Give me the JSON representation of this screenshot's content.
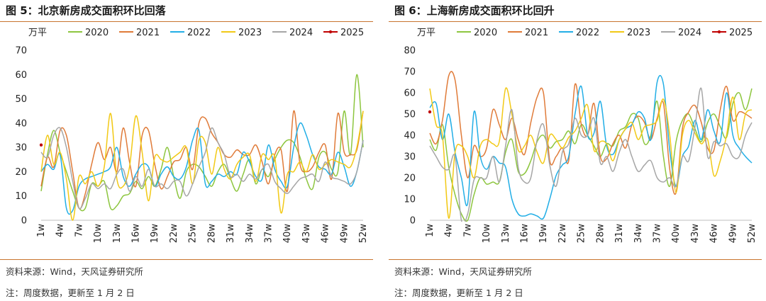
{
  "panels": [
    {
      "title": "图 5：北京新房成交面积环比回落",
      "source": "资料来源：Wind，天风证券研究所",
      "note": "注：周度数据，更新至 1 月 2 日"
    },
    {
      "title": "图 6：上海新房成交面积环比回升",
      "source": "资料来源：Wind，天风证券研究所",
      "note": "注：周度数据，更新至 1 月 2 日"
    }
  ],
  "chart_data": [
    {
      "type": "line",
      "ylabel": "万平",
      "ylim": [
        0,
        70
      ],
      "yticks": [
        0,
        10,
        20,
        30,
        40,
        50,
        60,
        70
      ],
      "xticks": [
        "1w",
        "4w",
        "7w",
        "10w",
        "13w",
        "16w",
        "19w",
        "22w",
        "25w",
        "28w",
        "31w",
        "34w",
        "37w",
        "40w",
        "43w",
        "46w",
        "49w",
        "52w"
      ],
      "grid": false,
      "legend": "top",
      "series": [
        {
          "name": "2020",
          "color": "#8dc63f",
          "values": [
            12,
            27,
            37,
            28,
            20,
            12,
            5,
            5,
            15,
            14,
            16,
            5,
            6,
            10,
            11,
            16,
            13,
            18,
            14,
            21,
            30,
            18,
            9,
            20,
            23,
            22,
            18,
            14,
            20,
            23,
            17,
            12,
            19,
            25,
            15,
            21,
            18,
            25,
            30,
            33,
            32,
            26,
            17,
            13,
            26,
            28,
            21,
            20,
            45,
            27,
            60,
            30
          ]
        },
        {
          "name": "2021",
          "color": "#e07b39",
          "values": [
            14,
            26,
            22,
            37,
            35,
            20,
            5,
            11,
            23,
            32,
            25,
            30,
            20,
            38,
            24,
            14,
            35,
            37,
            23,
            13,
            18,
            24,
            25,
            30,
            21,
            40,
            42,
            36,
            32,
            27,
            26,
            29,
            27,
            27,
            31,
            24,
            15,
            27,
            29,
            12,
            45,
            23,
            20,
            22,
            28,
            31,
            17,
            44,
            28,
            27,
            29,
            45
          ]
        },
        {
          "name": "2022",
          "color": "#22aee6",
          "values": [
            20,
            23,
            21,
            27,
            5,
            4,
            14,
            17,
            18,
            19,
            20,
            22,
            30,
            18,
            14,
            19,
            23,
            22,
            14,
            19,
            22,
            18,
            17,
            22,
            33,
            37,
            15,
            16,
            19,
            18,
            20,
            19,
            28,
            24,
            18,
            17,
            31,
            21,
            16,
            14,
            30,
            40,
            35,
            27,
            22,
            21,
            19,
            28,
            22,
            14,
            20,
            33
          ]
        },
        {
          "name": "2023",
          "color": "#f2c916",
          "values": [
            20,
            35,
            23,
            28,
            17,
            0,
            18,
            15,
            20,
            14,
            22,
            44,
            17,
            14,
            22,
            43,
            28,
            8,
            26,
            25,
            24,
            26,
            28,
            30,
            15,
            33,
            32,
            19,
            30,
            21,
            17,
            23,
            26,
            27,
            16,
            27,
            25,
            26,
            3,
            19,
            20,
            24,
            20,
            27,
            21,
            23,
            25,
            24,
            23,
            22,
            30,
            45
          ]
        },
        {
          "name": "2024",
          "color": "#a6a6a6",
          "values": [
            28,
            26,
            35,
            38,
            30,
            16,
            5,
            9,
            15,
            13,
            15,
            13,
            19,
            21,
            12,
            18,
            14,
            21,
            14,
            15,
            13,
            16,
            16,
            10,
            15,
            22,
            28,
            38,
            32,
            27,
            18,
            19,
            16,
            19,
            17,
            21,
            23,
            16,
            13,
            11,
            14,
            17,
            18,
            19,
            16,
            24,
            18,
            17,
            16,
            15,
            20,
            33
          ]
        },
        {
          "name": "2025",
          "color": "#c00000",
          "values": [
            31
          ]
        }
      ]
    },
    {
      "type": "line",
      "ylabel": "万平",
      "ylim": [
        0,
        80
      ],
      "yticks": [
        0,
        10,
        20,
        30,
        40,
        50,
        60,
        70,
        80
      ],
      "xticks": [
        "1w",
        "4w",
        "7w",
        "10w",
        "13w",
        "16w",
        "19w",
        "22w",
        "25w",
        "28w",
        "31w",
        "34w",
        "37w",
        "40w",
        "43w",
        "46w",
        "49w",
        "52w"
      ],
      "grid": false,
      "legend": "top",
      "series": [
        {
          "name": "2020",
          "color": "#8dc63f",
          "values": [
            38,
            33,
            45,
            25,
            12,
            3,
            0,
            12,
            20,
            17,
            18,
            18,
            32,
            38,
            23,
            22,
            28,
            37,
            40,
            34,
            37,
            38,
            42,
            36,
            45,
            40,
            35,
            30,
            36,
            35,
            42,
            44,
            50,
            48,
            36,
            40,
            56,
            30,
            16,
            37,
            47,
            50,
            43,
            37,
            46,
            50,
            44,
            39,
            55,
            60,
            52,
            62
          ]
        },
        {
          "name": "2021",
          "color": "#e07b39",
          "values": [
            41,
            36,
            47,
            68,
            66,
            40,
            20,
            35,
            30,
            34,
            52,
            45,
            38,
            48,
            38,
            31,
            46,
            58,
            60,
            28,
            30,
            34,
            28,
            64,
            45,
            40,
            55,
            30,
            29,
            36,
            40,
            34,
            45,
            49,
            46,
            38,
            48,
            55,
            24,
            13,
            43,
            51,
            54,
            46,
            34,
            33,
            52,
            63,
            47,
            51,
            50,
            48
          ]
        },
        {
          "name": "2022",
          "color": "#22aee6",
          "values": [
            53,
            55,
            38,
            50,
            32,
            20,
            8,
            51,
            30,
            24,
            30,
            27,
            25,
            10,
            3,
            2,
            3,
            2,
            1,
            10,
            21,
            26,
            30,
            50,
            63,
            40,
            41,
            56,
            35,
            31,
            38,
            43,
            45,
            51,
            48,
            38,
            65,
            64,
            33,
            16,
            30,
            35,
            47,
            38,
            52,
            42,
            37,
            60,
            40,
            34,
            30,
            27
          ]
        },
        {
          "name": "2023",
          "color": "#f2c916",
          "values": [
            62,
            45,
            40,
            1,
            32,
            35,
            30,
            20,
            35,
            38,
            36,
            37,
            62,
            50,
            33,
            35,
            40,
            32,
            27,
            40,
            38,
            34,
            39,
            42,
            48,
            54,
            33,
            37,
            36,
            28,
            38,
            43,
            46,
            38,
            44,
            45,
            47,
            57,
            40,
            13,
            40,
            47,
            41,
            36,
            38,
            21,
            28,
            40,
            58,
            38,
            50,
            52
          ]
        },
        {
          "name": "2024",
          "color": "#a6a6a6",
          "values": [
            35,
            30,
            25,
            24,
            30,
            0,
            3,
            19,
            20,
            20,
            30,
            18,
            35,
            52,
            25,
            18,
            20,
            38,
            45,
            26,
            16,
            32,
            36,
            48,
            40,
            40,
            48,
            27,
            30,
            23,
            32,
            38,
            30,
            23,
            26,
            28,
            20,
            18,
            20,
            16,
            30,
            28,
            44,
            62,
            30,
            37,
            35,
            36,
            30,
            30,
            40,
            46
          ]
        },
        {
          "name": "2025",
          "color": "#c00000",
          "values": [
            51
          ]
        }
      ]
    }
  ]
}
